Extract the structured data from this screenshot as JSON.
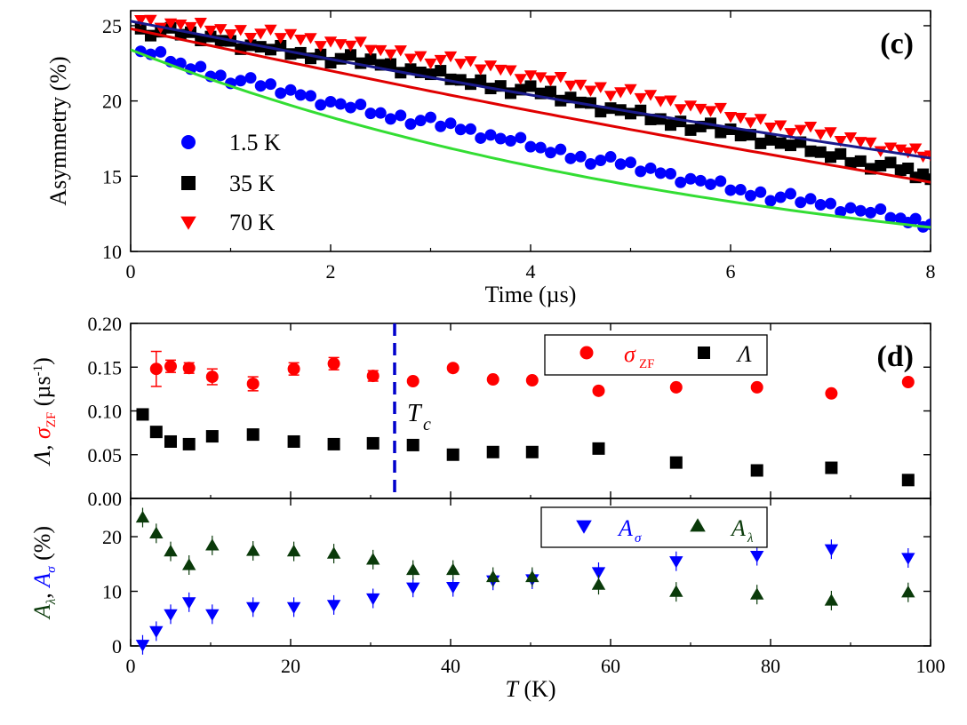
{
  "colors": {
    "red": "#ff0000",
    "black": "#000000",
    "blue": "#0000ff",
    "green": "#00cc00",
    "navy": "#1a1a8c",
    "darkgreen": "#0a3a0a",
    "fit_red": "#e00000",
    "fit_green": "#33dd33",
    "tc_line": "#0000cc"
  },
  "chart_data": [
    {
      "id": "c",
      "type": "scatter",
      "panel_label": "(c)",
      "xlabel": "Time (µs)",
      "ylabel": "Asymmetry (%)",
      "xlim": [
        0,
        8
      ],
      "ylim": [
        10,
        26
      ],
      "xticks": [
        0,
        2,
        4,
        6,
        8
      ],
      "yticks": [
        10,
        15,
        20,
        25
      ],
      "legend": {
        "position": "bottom-left",
        "entries": [
          "1.5 K",
          "35 K",
          "70 K"
        ]
      },
      "series": [
        {
          "name": "1.5 K",
          "marker": "circle",
          "color": "#0000ff",
          "x": [
            0.1,
            0.5,
            0.9,
            1.3,
            1.7,
            2.1,
            2.5,
            2.9,
            3.3,
            3.7,
            4.1,
            4.5,
            4.9,
            5.3,
            5.7,
            6.1,
            6.5,
            6.9,
            7.3,
            7.7,
            8.0
          ],
          "y": [
            23.3,
            22.5,
            21.7,
            21.0,
            20.4,
            19.8,
            19.2,
            18.7,
            18.1,
            17.5,
            16.9,
            16.3,
            15.8,
            15.2,
            14.7,
            14.1,
            13.6,
            13.1,
            12.7,
            12.2,
            11.8
          ]
        },
        {
          "name": "35 K",
          "marker": "square",
          "color": "#000000",
          "x": [
            0.1,
            0.5,
            0.9,
            1.3,
            1.7,
            2.1,
            2.5,
            2.9,
            3.3,
            3.7,
            4.1,
            4.5,
            4.9,
            5.3,
            5.7,
            6.1,
            6.5,
            6.9,
            7.3,
            7.7,
            8.0
          ],
          "y": [
            24.8,
            24.4,
            24.0,
            23.6,
            23.2,
            22.8,
            22.4,
            21.9,
            21.4,
            21.0,
            20.5,
            19.9,
            19.4,
            18.8,
            18.3,
            17.7,
            17.2,
            16.6,
            16.0,
            15.4,
            14.8
          ]
        },
        {
          "name": "70 K",
          "marker": "triangle-down",
          "color": "#ff0000",
          "x": [
            0.1,
            0.5,
            0.9,
            1.3,
            1.7,
            2.1,
            2.5,
            2.9,
            3.3,
            3.7,
            4.1,
            4.5,
            4.9,
            5.3,
            5.7,
            6.1,
            6.5,
            6.9,
            7.3,
            7.7,
            8.0
          ],
          "y": [
            25.4,
            25.1,
            24.8,
            24.5,
            24.1,
            23.8,
            23.4,
            23.0,
            22.5,
            22.1,
            21.6,
            21.1,
            20.6,
            20.0,
            19.5,
            18.9,
            18.4,
            17.8,
            17.3,
            16.8,
            16.4
          ]
        }
      ],
      "fits": [
        {
          "name": "fit 1.5 K",
          "color": "#33dd33",
          "a0": 23.4,
          "a1": 12.6,
          "r1": 0.07,
          "a2": 10.8,
          "r2": 0.0
        },
        {
          "name": "fit 35 K",
          "color": "#e00000",
          "a0": 24.8,
          "a1": 0,
          "r1": 0,
          "a2": 0,
          "r2": 0,
          "linear": [
            24.8,
            14.6
          ]
        },
        {
          "name": "fit 70 K",
          "color": "#1a1a8c",
          "a0": 25.3,
          "a1": 0,
          "r1": 0,
          "a2": 0,
          "r2": 0,
          "linear": [
            25.3,
            16.2
          ]
        }
      ]
    },
    {
      "id": "d",
      "type": "scatter",
      "panel_label": "(d)",
      "xlabel": "",
      "ylabel": "Λ, σZF (µs-1)",
      "xlim": [
        0,
        100
      ],
      "ylim": [
        0.0,
        0.2
      ],
      "xticks": [
        0,
        20,
        40,
        60,
        80,
        100
      ],
      "yticks": [
        0.0,
        0.05,
        0.1,
        0.15,
        0.2
      ],
      "ytick_labels": [
        "0.00",
        "0.05",
        "0.10",
        "0.15",
        "0.20"
      ],
      "legend": {
        "position": "top-right",
        "entries": [
          "σZF",
          "Λ"
        ]
      },
      "annotation": {
        "text": "T",
        "sub": "c",
        "x": 33
      },
      "series": [
        {
          "name": "σZF",
          "marker": "circle",
          "color": "#ff0000",
          "x": [
            1.5,
            3.2,
            5.0,
            7.3,
            10.2,
            15.3,
            20.4,
            25.4,
            30.3,
            35.3,
            40.3,
            45.3,
            50.2,
            58.5,
            68.2,
            78.3,
            87.6,
            97.2
          ],
          "y": [
            0.095,
            0.148,
            0.151,
            0.149,
            0.139,
            0.131,
            0.148,
            0.154,
            0.14,
            0.134,
            0.149,
            0.136,
            0.135,
            0.123,
            0.127,
            0.127,
            0.12,
            0.133
          ],
          "yerr": [
            0.0,
            0.02,
            0.007,
            0.006,
            0.009,
            0.008,
            0.007,
            0.007,
            0.006,
            0.0,
            0.0,
            0.0,
            0.0,
            0.0,
            0.0,
            0.0,
            0.0,
            0.0
          ]
        },
        {
          "name": "Λ",
          "marker": "square",
          "color": "#000000",
          "x": [
            1.5,
            3.2,
            5.0,
            7.3,
            10.2,
            15.3,
            20.4,
            25.4,
            30.3,
            35.3,
            40.3,
            45.3,
            50.2,
            58.5,
            68.2,
            78.3,
            87.6,
            97.2
          ],
          "y": [
            0.096,
            0.076,
            0.065,
            0.062,
            0.071,
            0.073,
            0.065,
            0.062,
            0.063,
            0.061,
            0.05,
            0.053,
            0.053,
            0.057,
            0.041,
            0.032,
            0.035,
            0.021
          ]
        }
      ]
    },
    {
      "id": "e",
      "type": "scatter",
      "panel_label": "",
      "xlabel": "T (K)",
      "ylabel": "Aλ, Aσ (%)",
      "xlim": [
        0,
        100
      ],
      "ylim": [
        0,
        27
      ],
      "xticks": [
        0,
        20,
        40,
        60,
        80,
        100
      ],
      "yticks": [
        0,
        10,
        20
      ],
      "legend": {
        "position": "top-right",
        "entries": [
          "Aσ",
          "Aλ"
        ]
      },
      "series": [
        {
          "name": "Aσ",
          "marker": "triangle-down",
          "color": "#0000ff",
          "x": [
            1.5,
            3.2,
            5.0,
            7.3,
            10.2,
            15.3,
            20.4,
            25.4,
            30.3,
            35.3,
            40.3,
            45.3,
            50.2,
            58.5,
            68.2,
            78.3,
            87.6,
            97.2
          ],
          "y": [
            0.2,
            2.7,
            5.8,
            8.0,
            5.8,
            7.1,
            7.1,
            7.5,
            8.7,
            10.7,
            10.8,
            12.0,
            12.2,
            13.5,
            15.5,
            16.5,
            17.7,
            16.1
          ]
        },
        {
          "name": "Aλ",
          "marker": "triangle-up",
          "color": "#0a3a0a",
          "x": [
            1.5,
            3.2,
            5.0,
            7.3,
            10.2,
            15.3,
            20.4,
            25.4,
            30.3,
            35.3,
            40.3,
            45.3,
            50.2,
            58.5,
            68.2,
            78.3,
            87.6,
            97.2
          ],
          "y": [
            23.5,
            20.6,
            17.3,
            14.8,
            18.4,
            17.4,
            17.3,
            16.9,
            15.8,
            13.9,
            13.9,
            12.6,
            12.6,
            11.2,
            9.9,
            9.4,
            8.3,
            9.8
          ]
        }
      ]
    }
  ]
}
